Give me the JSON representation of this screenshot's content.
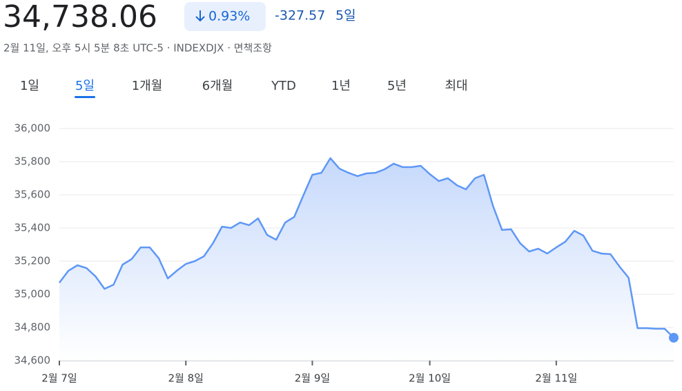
{
  "header": {
    "price": "34,738.06",
    "change_pct": "0.93%",
    "change": "-327.57",
    "period": "5일",
    "meta": "2월 11일, 오후 5시 5분 8초 UTC-5 · INDEXDJX · 면책조항"
  },
  "tabs": [
    "1일",
    "5일",
    "1개월",
    "6개월",
    "YTD",
    "1년",
    "5년",
    "최대"
  ],
  "selected_tab": 1,
  "chart_data": {
    "type": "area",
    "color": "#5e97f6",
    "grid": true,
    "values": [
      35070,
      35142,
      35175,
      35158,
      35108,
      35033,
      35058,
      35179,
      35212,
      35283,
      35283,
      35217,
      35096,
      35142,
      35183,
      35200,
      35229,
      35308,
      35408,
      35400,
      35433,
      35417,
      35458,
      35358,
      35329,
      35433,
      35467,
      35596,
      35721,
      35733,
      35821,
      35758,
      35733,
      35713,
      35729,
      35733,
      35754,
      35788,
      35767,
      35767,
      35775,
      35725,
      35683,
      35700,
      35658,
      35633,
      35700,
      35721,
      35533,
      35388,
      35392,
      35308,
      35258,
      35275,
      35246,
      35283,
      35317,
      35383,
      35354,
      35263,
      35246,
      35242,
      35167,
      35100,
      34796,
      34796,
      34792,
      34792,
      34738
    ],
    "xlim": [
      0,
      68
    ],
    "xticks": [
      {
        "value": 0,
        "label": "2월 7일"
      },
      {
        "value": 14,
        "label": "2월 8일"
      },
      {
        "value": 28,
        "label": "2월 9일"
      },
      {
        "value": 41,
        "label": "2월 10일"
      },
      {
        "value": 55,
        "label": "2월 11일"
      }
    ],
    "ylim": [
      34600,
      36000
    ],
    "yticks": [
      {
        "value": 34600,
        "label": "34,600"
      },
      {
        "value": 34800,
        "label": "34,800"
      },
      {
        "value": 35000,
        "label": "35,000"
      },
      {
        "value": 35200,
        "label": "35,200"
      },
      {
        "value": 35400,
        "label": "35,400"
      },
      {
        "value": 35600,
        "label": "35,600"
      },
      {
        "value": 35800,
        "label": "35,800"
      },
      {
        "value": 36000,
        "label": "36,000"
      }
    ]
  }
}
